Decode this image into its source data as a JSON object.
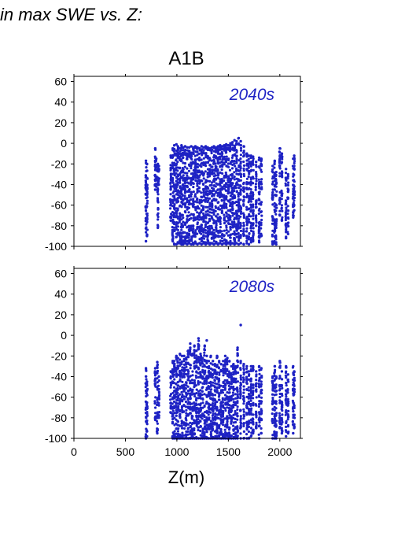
{
  "figure": {
    "header_text": "in max SWE vs. Z:",
    "title": "A1B",
    "xlabel": "Z(m)"
  },
  "colors": {
    "points": "#1e22c4",
    "panel_label": "#1e22c4",
    "axis": "#000000"
  },
  "chart_data": [
    {
      "type": "scatter",
      "panel_label": "2040s",
      "xlim": [
        0,
        2200
      ],
      "ylim": [
        -100,
        65
      ],
      "yticks": [
        60,
        40,
        20,
        0,
        -20,
        -40,
        -60,
        -80,
        -100
      ],
      "xticks": [
        0,
        500,
        1000,
        1500,
        2000
      ],
      "show_x_tick_labels": false,
      "grid": false,
      "clusters": [
        {
          "x": 700,
          "y": [
            -95,
            -17
          ]
        },
        {
          "x": 710,
          "y": [
            -90,
            -20
          ]
        },
        {
          "x": 790,
          "y": [
            -45,
            -5
          ]
        },
        {
          "x": 800,
          "y": [
            -42,
            -15
          ]
        },
        {
          "x": 815,
          "y": [
            -82,
            -20
          ]
        },
        {
          "x": 825,
          "y": [
            -40,
            -22
          ]
        },
        {
          "x": 940,
          "y": [
            -75,
            -12
          ]
        },
        {
          "x": 960,
          "y": [
            -95,
            -5
          ]
        },
        {
          "x": 975,
          "y": [
            -98,
            -2
          ]
        },
        {
          "x": 995,
          "y": [
            -98,
            -1
          ]
        },
        {
          "x": 1010,
          "y": [
            -97,
            -3
          ]
        },
        {
          "x": 1030,
          "y": [
            -97,
            -5
          ]
        },
        {
          "x": 1045,
          "y": [
            -98,
            -2
          ]
        },
        {
          "x": 1060,
          "y": [
            -98,
            -4
          ]
        },
        {
          "x": 1080,
          "y": [
            -97,
            -3
          ]
        },
        {
          "x": 1100,
          "y": [
            -98,
            -4
          ]
        },
        {
          "x": 1120,
          "y": [
            -97,
            -4
          ]
        },
        {
          "x": 1140,
          "y": [
            -98,
            -3
          ]
        },
        {
          "x": 1160,
          "y": [
            -98,
            -4
          ]
        },
        {
          "x": 1180,
          "y": [
            -97,
            -3
          ]
        },
        {
          "x": 1200,
          "y": [
            -98,
            -4
          ]
        },
        {
          "x": 1220,
          "y": [
            -97,
            -5
          ]
        },
        {
          "x": 1240,
          "y": [
            -98,
            -3
          ]
        },
        {
          "x": 1260,
          "y": [
            -97,
            -4
          ]
        },
        {
          "x": 1280,
          "y": [
            -98,
            -3
          ]
        },
        {
          "x": 1300,
          "y": [
            -97,
            -4
          ]
        },
        {
          "x": 1320,
          "y": [
            -98,
            -5
          ]
        },
        {
          "x": 1340,
          "y": [
            -97,
            -4
          ]
        },
        {
          "x": 1360,
          "y": [
            -98,
            -3
          ]
        },
        {
          "x": 1380,
          "y": [
            -97,
            -4
          ]
        },
        {
          "x": 1400,
          "y": [
            -98,
            -3
          ]
        },
        {
          "x": 1420,
          "y": [
            -97,
            -2
          ]
        },
        {
          "x": 1440,
          "y": [
            -98,
            -3
          ]
        },
        {
          "x": 1460,
          "y": [
            -97,
            -2
          ]
        },
        {
          "x": 1480,
          "y": [
            -98,
            -1
          ]
        },
        {
          "x": 1500,
          "y": [
            -97,
            -2
          ]
        },
        {
          "x": 1520,
          "y": [
            -98,
            0
          ]
        },
        {
          "x": 1540,
          "y": [
            -97,
            1
          ]
        },
        {
          "x": 1560,
          "y": [
            -98,
            3
          ]
        },
        {
          "x": 1580,
          "y": [
            -97,
            2
          ]
        },
        {
          "x": 1600,
          "y": [
            -98,
            5
          ]
        },
        {
          "x": 1620,
          "y": [
            -97,
            2
          ]
        },
        {
          "x": 1650,
          "y": [
            -98,
            -3
          ]
        },
        {
          "x": 1680,
          "y": [
            -97,
            -10
          ]
        },
        {
          "x": 1700,
          "y": [
            -98,
            -12
          ]
        },
        {
          "x": 1720,
          "y": [
            -96,
            -12
          ]
        },
        {
          "x": 1740,
          "y": [
            -95,
            -13
          ]
        },
        {
          "x": 1770,
          "y": [
            -80,
            -18
          ]
        },
        {
          "x": 1800,
          "y": [
            -96,
            -14
          ]
        },
        {
          "x": 1820,
          "y": [
            -90,
            -15
          ]
        },
        {
          "x": 1930,
          "y": [
            -98,
            -22
          ]
        },
        {
          "x": 1950,
          "y": [
            -97,
            -17
          ]
        },
        {
          "x": 1965,
          "y": [
            -98,
            -28
          ]
        },
        {
          "x": 2000,
          "y": [
            -70,
            -5
          ]
        },
        {
          "x": 2020,
          "y": [
            -75,
            -10
          ]
        },
        {
          "x": 2060,
          "y": [
            -92,
            -25
          ]
        },
        {
          "x": 2080,
          "y": [
            -88,
            -30
          ]
        },
        {
          "x": 2130,
          "y": [
            -72,
            -15
          ]
        },
        {
          "x": 2140,
          "y": [
            -65,
            -12
          ]
        }
      ]
    },
    {
      "type": "scatter",
      "panel_label": "2080s",
      "xlim": [
        0,
        2200
      ],
      "ylim": [
        -100,
        65
      ],
      "yticks": [
        60,
        40,
        20,
        0,
        -20,
        -40,
        -60,
        -80,
        -100
      ],
      "xticks": [
        0,
        500,
        1000,
        1500,
        2000
      ],
      "show_x_tick_labels": true,
      "grid": false,
      "clusters": [
        {
          "x": 700,
          "y": [
            -100,
            -32
          ]
        },
        {
          "x": 710,
          "y": [
            -98,
            -45
          ]
        },
        {
          "x": 790,
          "y": [
            -82,
            -32
          ]
        },
        {
          "x": 810,
          "y": [
            -95,
            -26
          ]
        },
        {
          "x": 825,
          "y": [
            -80,
            -40
          ]
        },
        {
          "x": 940,
          "y": [
            -75,
            -35
          ]
        },
        {
          "x": 960,
          "y": [
            -100,
            -25
          ]
        },
        {
          "x": 975,
          "y": [
            -100,
            -25
          ]
        },
        {
          "x": 995,
          "y": [
            -100,
            -20
          ]
        },
        {
          "x": 1010,
          "y": [
            -100,
            -22
          ]
        },
        {
          "x": 1030,
          "y": [
            -100,
            -18
          ]
        },
        {
          "x": 1050,
          "y": [
            -100,
            -20
          ]
        },
        {
          "x": 1070,
          "y": [
            -100,
            -20
          ]
        },
        {
          "x": 1090,
          "y": [
            -100,
            -22
          ]
        },
        {
          "x": 1110,
          "y": [
            -100,
            -15
          ]
        },
        {
          "x": 1130,
          "y": [
            -100,
            -12
          ]
        },
        {
          "x": 1150,
          "y": [
            -100,
            -18
          ]
        },
        {
          "x": 1170,
          "y": [
            -100,
            -10
          ]
        },
        {
          "x": 1190,
          "y": [
            -100,
            -15
          ]
        },
        {
          "x": 1210,
          "y": [
            -100,
            -3
          ]
        },
        {
          "x": 1230,
          "y": [
            -100,
            -18
          ]
        },
        {
          "x": 1250,
          "y": [
            -100,
            -22
          ]
        },
        {
          "x": 1270,
          "y": [
            -100,
            -10
          ]
        },
        {
          "x": 1290,
          "y": [
            -100,
            -20
          ]
        },
        {
          "x": 1310,
          "y": [
            -100,
            -25
          ]
        },
        {
          "x": 1330,
          "y": [
            -100,
            -20
          ]
        },
        {
          "x": 1350,
          "y": [
            -100,
            -25
          ]
        },
        {
          "x": 1370,
          "y": [
            -100,
            -28
          ]
        },
        {
          "x": 1390,
          "y": [
            -100,
            -20
          ]
        },
        {
          "x": 1410,
          "y": [
            -100,
            -25
          ]
        },
        {
          "x": 1430,
          "y": [
            -100,
            -28
          ]
        },
        {
          "x": 1450,
          "y": [
            -100,
            -25
          ]
        },
        {
          "x": 1470,
          "y": [
            -100,
            -20
          ]
        },
        {
          "x": 1490,
          "y": [
            -100,
            -22
          ]
        },
        {
          "x": 1510,
          "y": [
            -100,
            -25
          ]
        },
        {
          "x": 1530,
          "y": [
            -100,
            -30
          ]
        },
        {
          "x": 1550,
          "y": [
            -100,
            -28
          ]
        },
        {
          "x": 1570,
          "y": [
            -100,
            -30
          ]
        },
        {
          "x": 1590,
          "y": [
            -100,
            -12
          ]
        },
        {
          "x": 1620,
          "y": [
            -100,
            -25
          ]
        },
        {
          "x": 1650,
          "y": [
            -100,
            -28
          ]
        },
        {
          "x": 1680,
          "y": [
            -100,
            -30
          ]
        },
        {
          "x": 1700,
          "y": [
            -100,
            -35
          ]
        },
        {
          "x": 1720,
          "y": [
            -98,
            -30
          ]
        },
        {
          "x": 1740,
          "y": [
            -95,
            -30
          ]
        },
        {
          "x": 1770,
          "y": [
            -90,
            -35
          ]
        },
        {
          "x": 1800,
          "y": [
            -100,
            -30
          ]
        },
        {
          "x": 1820,
          "y": [
            -95,
            -32
          ]
        },
        {
          "x": 1930,
          "y": [
            -100,
            -40
          ]
        },
        {
          "x": 1950,
          "y": [
            -100,
            -30
          ]
        },
        {
          "x": 1965,
          "y": [
            -100,
            -40
          ]
        },
        {
          "x": 2000,
          "y": [
            -90,
            -25
          ]
        },
        {
          "x": 2020,
          "y": [
            -95,
            -35
          ]
        },
        {
          "x": 2060,
          "y": [
            -98,
            -30
          ]
        },
        {
          "x": 2080,
          "y": [
            -95,
            -38
          ]
        },
        {
          "x": 2130,
          "y": [
            -95,
            -30
          ]
        },
        {
          "x": 2140,
          "y": [
            -90,
            -35
          ]
        }
      ],
      "outliers": [
        {
          "x": 1620,
          "y": 10
        },
        {
          "x": 1290,
          "y": -5
        },
        {
          "x": 1130,
          "y": -8
        }
      ]
    }
  ]
}
